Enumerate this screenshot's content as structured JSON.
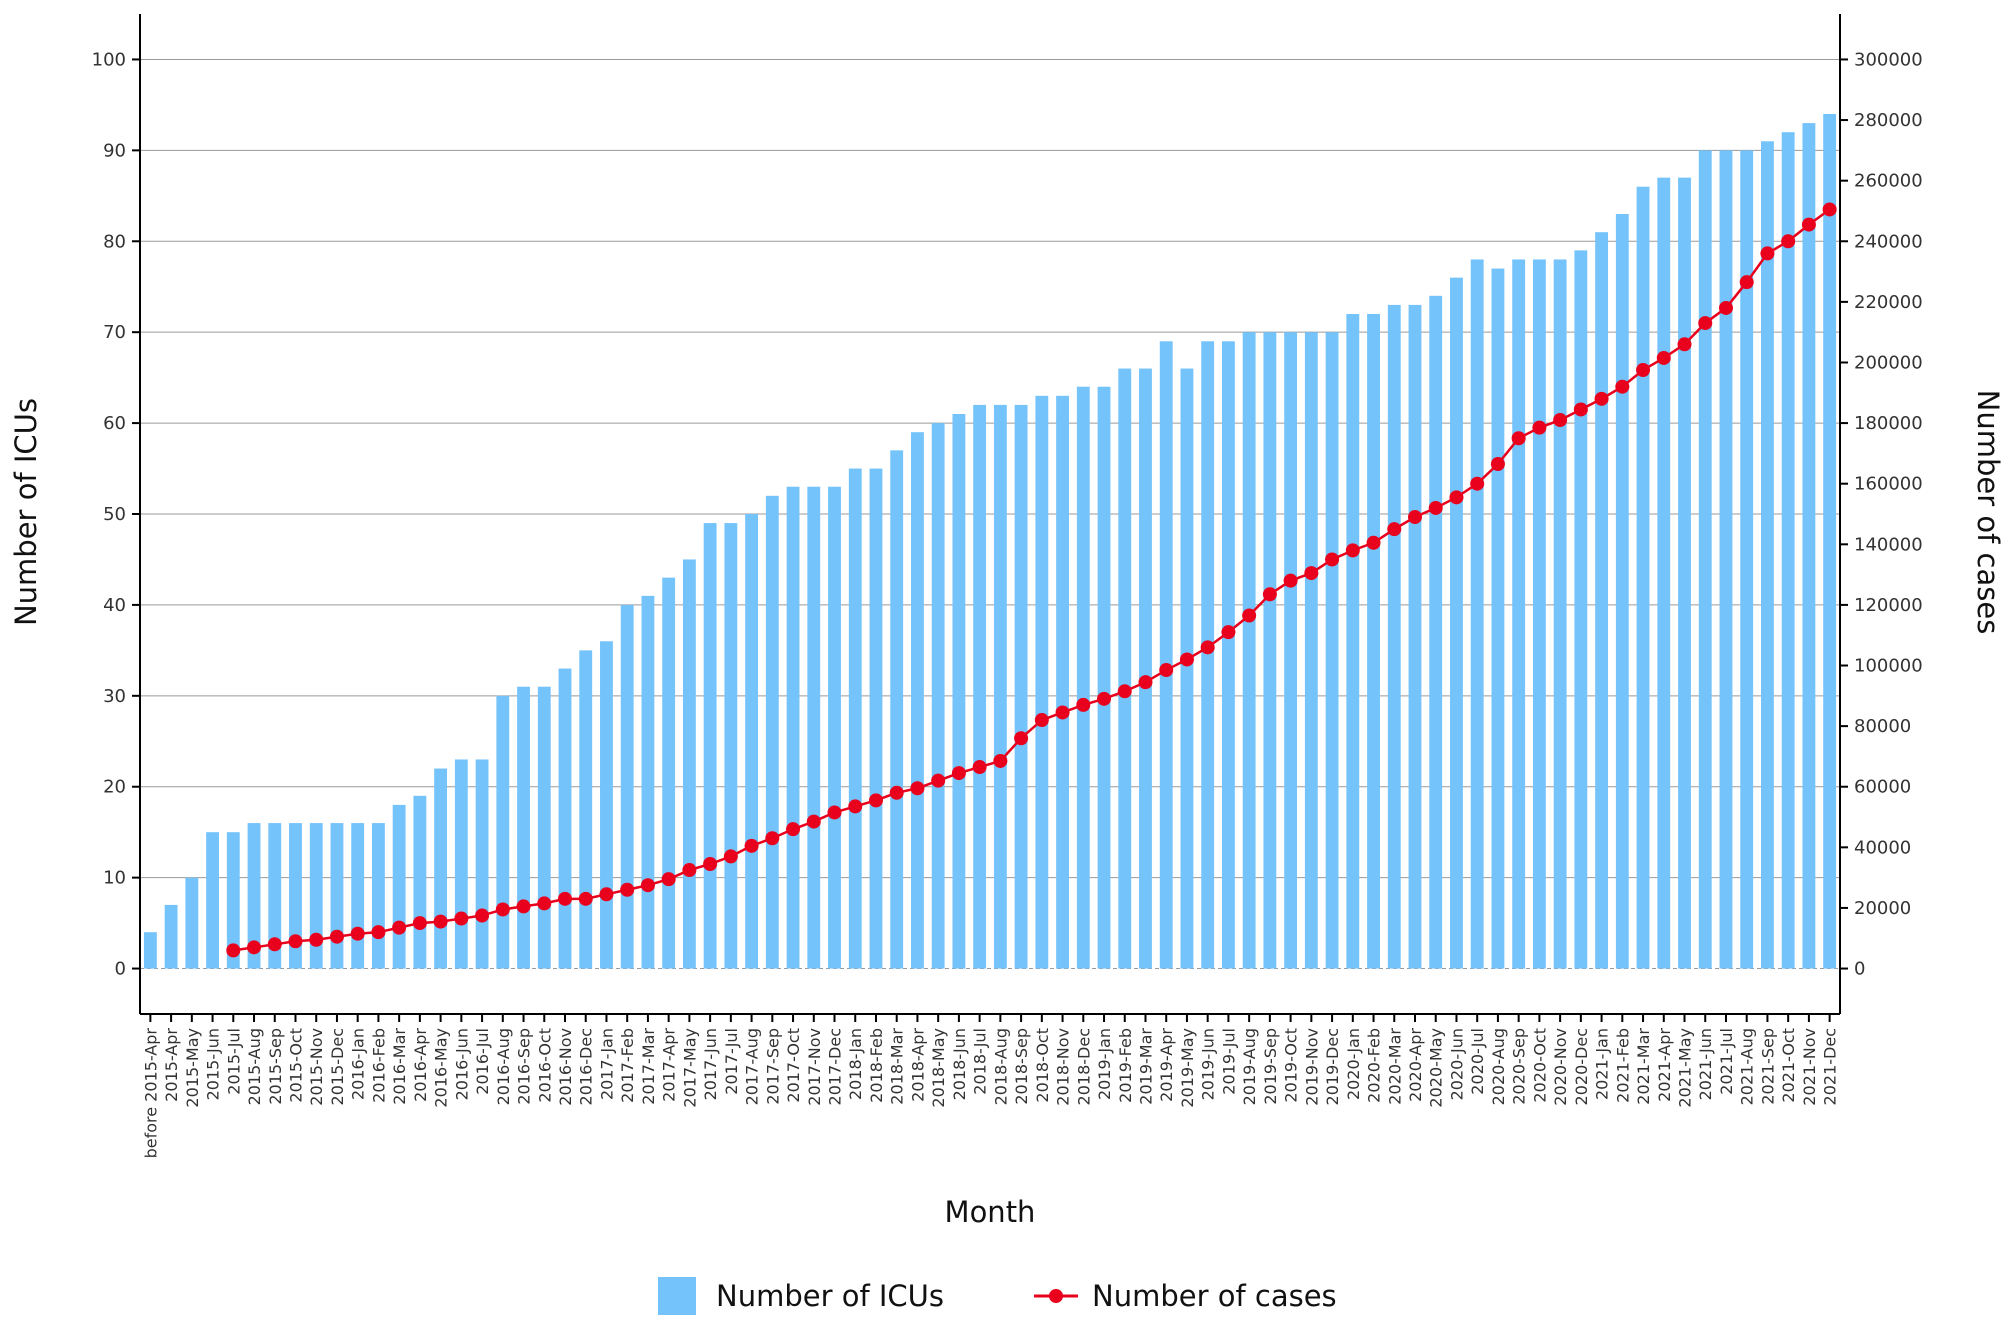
{
  "chart_data": {
    "type": "bar",
    "categories": [
      "before 2015-Apr",
      "2015-Apr",
      "2015-May",
      "2015-Jun",
      "2015-Jul",
      "2015-Aug",
      "2015-Sep",
      "2015-Oct",
      "2015-Nov",
      "2015-Dec",
      "2016-Jan",
      "2016-Feb",
      "2016-Mar",
      "2016-Apr",
      "2016-May",
      "2016-Jun",
      "2016-Jul",
      "2016-Aug",
      "2016-Sep",
      "2016-Oct",
      "2016-Nov",
      "2016-Dec",
      "2017-Jan",
      "2017-Feb",
      "2017-Mar",
      "2017-Apr",
      "2017-May",
      "2017-Jun",
      "2017-Jul",
      "2017-Aug",
      "2017-Sep",
      "2017-Oct",
      "2017-Nov",
      "2017-Dec",
      "2018-Jan",
      "2018-Feb",
      "2018-Mar",
      "2018-Apr",
      "2018-May",
      "2018-Jun",
      "2018-Jul",
      "2018-Aug",
      "2018-Sep",
      "2018-Oct",
      "2018-Nov",
      "2018-Dec",
      "2019-Jan",
      "2019-Feb",
      "2019-Mar",
      "2019-Apr",
      "2019-May",
      "2019-Jun",
      "2019-Jul",
      "2019-Aug",
      "2019-Sep",
      "2019-Oct",
      "2019-Nov",
      "2019-Dec",
      "2020-Jan",
      "2020-Feb",
      "2020-Mar",
      "2020-Apr",
      "2020-May",
      "2020-Jun",
      "2020-Jul",
      "2020-Aug",
      "2020-Sep",
      "2020-Oct",
      "2020-Nov",
      "2020-Dec",
      "2021-Jan",
      "2021-Feb",
      "2021-Mar",
      "2021-Apr",
      "2021-May",
      "2021-Jun",
      "2021-Jul",
      "2021-Aug",
      "2021-Sep",
      "2021-Oct",
      "2021-Nov",
      "2021-Dec"
    ],
    "series": [
      {
        "name": "Number of ICUs",
        "kind": "bar",
        "axis": "left",
        "color": "#74C3FB",
        "values": [
          4,
          7,
          10,
          15,
          15,
          16,
          16,
          16,
          16,
          16,
          16,
          16,
          18,
          19,
          22,
          23,
          23,
          30,
          31,
          31,
          33,
          35,
          36,
          40,
          41,
          43,
          45,
          49,
          49,
          50,
          52,
          53,
          53,
          53,
          55,
          55,
          57,
          59,
          60,
          61,
          62,
          62,
          62,
          63,
          63,
          64,
          64,
          66,
          66,
          69,
          66,
          69,
          69,
          70,
          70,
          70,
          70,
          70,
          72,
          72,
          73,
          73,
          74,
          76,
          78,
          77,
          78,
          78,
          78,
          79,
          81,
          83,
          86,
          87,
          87,
          90,
          90,
          90,
          91,
          92,
          93,
          94
        ]
      },
      {
        "name": "Number of cases",
        "kind": "line",
        "axis": "right",
        "color": "#E8001C",
        "values": [
          null,
          null,
          null,
          null,
          6000,
          7000,
          8000,
          9000,
          9500,
          10500,
          11500,
          12000,
          13500,
          15000,
          15500,
          16500,
          17500,
          19500,
          20500,
          21500,
          23000,
          23000,
          24500,
          26000,
          27500,
          29500,
          32500,
          34500,
          37000,
          40500,
          43000,
          46000,
          48500,
          51500,
          53500,
          55500,
          58000,
          59500,
          62000,
          64500,
          66500,
          68500,
          76000,
          82000,
          84500,
          87000,
          89000,
          91500,
          94500,
          98500,
          102000,
          106000,
          111000,
          116500,
          123500,
          128000,
          130500,
          135000,
          138000,
          140500,
          145000,
          149000,
          152000,
          155500,
          160000,
          166500,
          175000,
          178500,
          181000,
          184500,
          188000,
          192000,
          197500,
          201500,
          206000,
          213000,
          218000,
          226500,
          236000,
          240000,
          245500,
          250500
        ]
      }
    ],
    "xlabel": "Month",
    "ylabel": "Number of ICUs",
    "y2label": "Number of cases",
    "ylim": [
      -5,
      105
    ],
    "y2lim": [
      -15000,
      315000
    ],
    "yticks": [
      0,
      10,
      20,
      30,
      40,
      50,
      60,
      70,
      80,
      90,
      100
    ],
    "y2ticks": [
      0,
      20000,
      40000,
      60000,
      80000,
      100000,
      120000,
      140000,
      160000,
      180000,
      200000,
      220000,
      240000,
      260000,
      280000,
      300000
    ],
    "grid": "horizontal major lines (left axis)",
    "legend": "bottom-center"
  },
  "colors": {
    "bar": "#74C3FB",
    "line": "#E8001C",
    "grid": "#9a9a9a",
    "axis": "#000000"
  }
}
